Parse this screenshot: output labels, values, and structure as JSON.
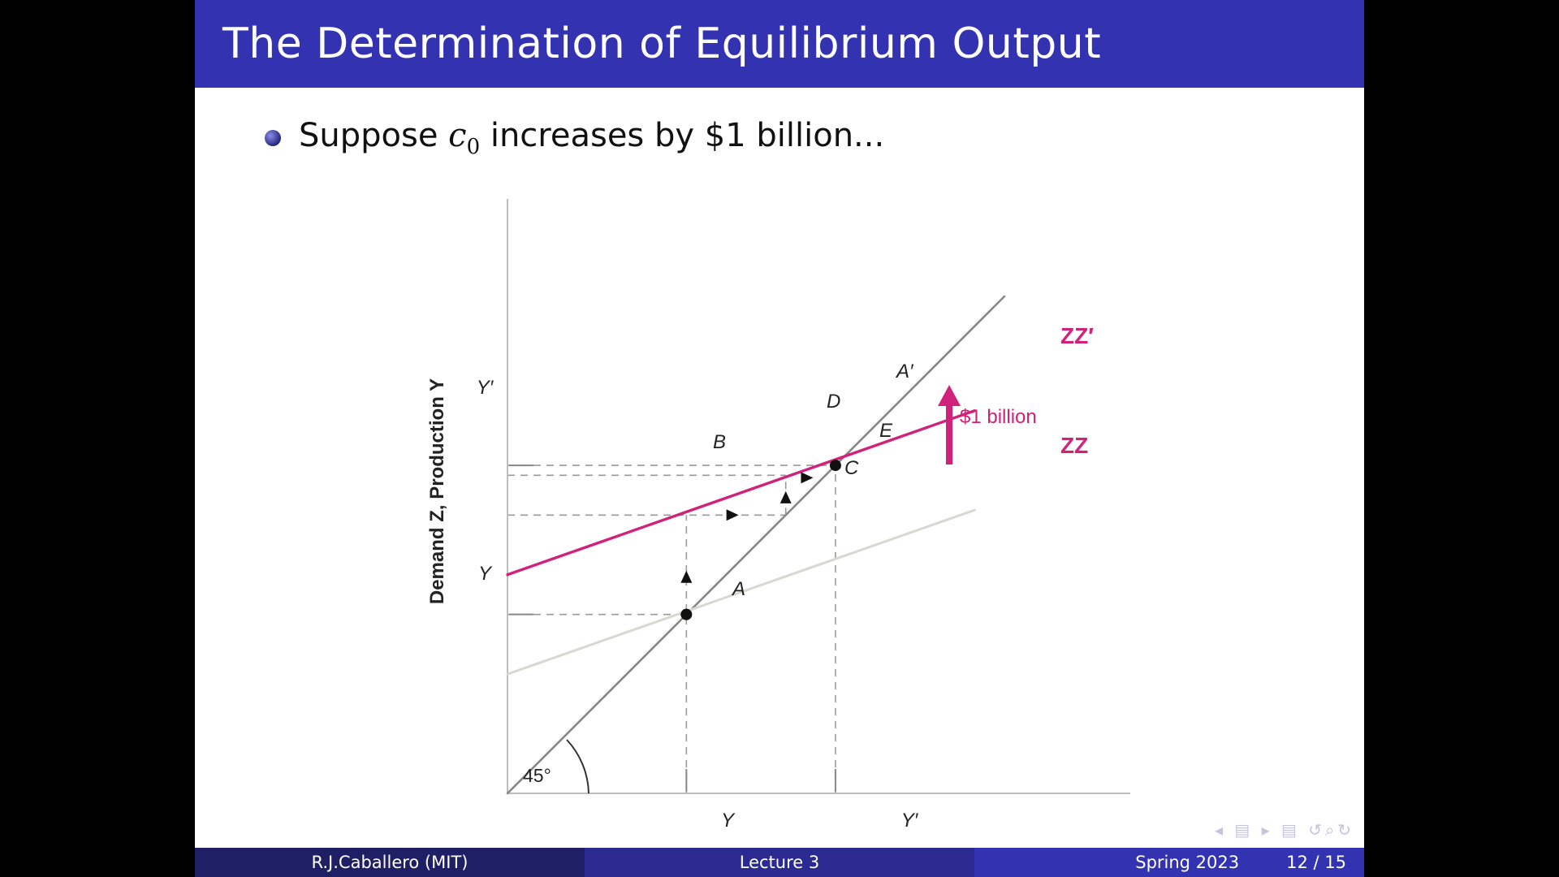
{
  "slide": {
    "title": "The Determination of Equilibrium Output",
    "bullet": {
      "prefix": "Suppose ",
      "math_var": "c",
      "math_sub": "0",
      "suffix": " increases by $1 billion..."
    }
  },
  "chart_data": {
    "type": "line",
    "title": "",
    "ylabel": "Demand Z, Production Y",
    "xlabel": "",
    "x_ticks": [
      "Y",
      "Y′"
    ],
    "y_ticks": [
      "Y",
      "Y′"
    ],
    "xlim": [
      0,
      10
    ],
    "ylim": [
      0,
      10
    ],
    "angle_label": "45°",
    "lines": [
      {
        "name": "45-degree line",
        "color": "#888888",
        "points": [
          [
            0,
            0
          ],
          [
            10,
            10
          ]
        ]
      },
      {
        "name": "ZZ",
        "color": "#d8d8d0",
        "points": [
          [
            0,
            2.4
          ],
          [
            9.4,
            5.7
          ]
        ]
      },
      {
        "name": "ZZ′",
        "color": "#d0227a",
        "points": [
          [
            0,
            4.4
          ],
          [
            9.4,
            7.7
          ]
        ]
      }
    ],
    "series_labels": [
      {
        "text": "ZZ′",
        "color": "#d0227a"
      },
      {
        "text": "ZZ",
        "color": "#d0227a"
      }
    ],
    "equilibria": [
      {
        "label": "A",
        "x": 3.6,
        "y": 3.6
      },
      {
        "label": "A′",
        "x": 6.6,
        "y": 6.6
      }
    ],
    "points": [
      {
        "label": "B",
        "x": 3.6,
        "y": 5.6
      },
      {
        "label": "C",
        "x": 5.6,
        "y": 5.6
      },
      {
        "label": "D",
        "x": 5.6,
        "y": 6.4
      },
      {
        "label": "E",
        "x": 6.0,
        "y": 6.1
      }
    ],
    "shift_annotation": {
      "text": "$1 billion",
      "color": "#d0227a"
    }
  },
  "footer": {
    "author": "R.J.Caballero  (MIT)",
    "lecture": "Lecture 3",
    "term": "Spring 2023",
    "page": "12 / 15"
  },
  "nav": {
    "symbols": "◂ ▤ ▸   ▤   ↺⌕↻"
  }
}
